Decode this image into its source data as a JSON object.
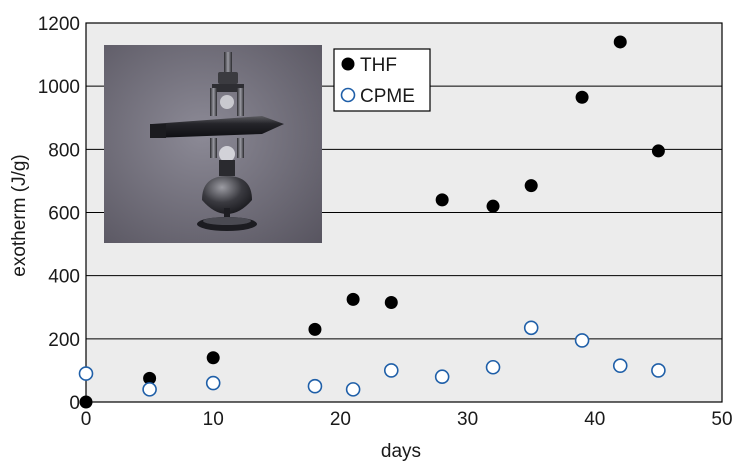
{
  "chart_data": {
    "type": "scatter",
    "title": "",
    "xlabel": "days",
    "ylabel": "exotherm (J/g)",
    "xlim": [
      0,
      50
    ],
    "ylim": [
      0,
      1200
    ],
    "x_ticks": [
      "0",
      "10",
      "20",
      "30",
      "40",
      "50"
    ],
    "y_ticks": [
      "0",
      "200",
      "400",
      "600",
      "800",
      "1000",
      "1200"
    ],
    "grid": "horizontal",
    "legend_placement": "top-left",
    "series": [
      {
        "name": "THF",
        "marker": "filled-circle",
        "color": "#000000",
        "x": [
          0,
          5,
          10,
          18,
          21,
          24,
          28,
          32,
          35,
          39,
          42,
          45
        ],
        "y": [
          0,
          75,
          140,
          230,
          325,
          315,
          640,
          620,
          685,
          965,
          1140,
          795
        ]
      },
      {
        "name": "CPME",
        "marker": "open-circle",
        "color": "#1f5fa8",
        "x": [
          0,
          5,
          10,
          18,
          21,
          24,
          28,
          32,
          35,
          39,
          42,
          45
        ],
        "y": [
          90,
          40,
          60,
          50,
          40,
          100,
          80,
          110,
          235,
          195,
          115,
          100
        ]
      }
    ],
    "inset_photo": "reaction-vessel-photo"
  }
}
